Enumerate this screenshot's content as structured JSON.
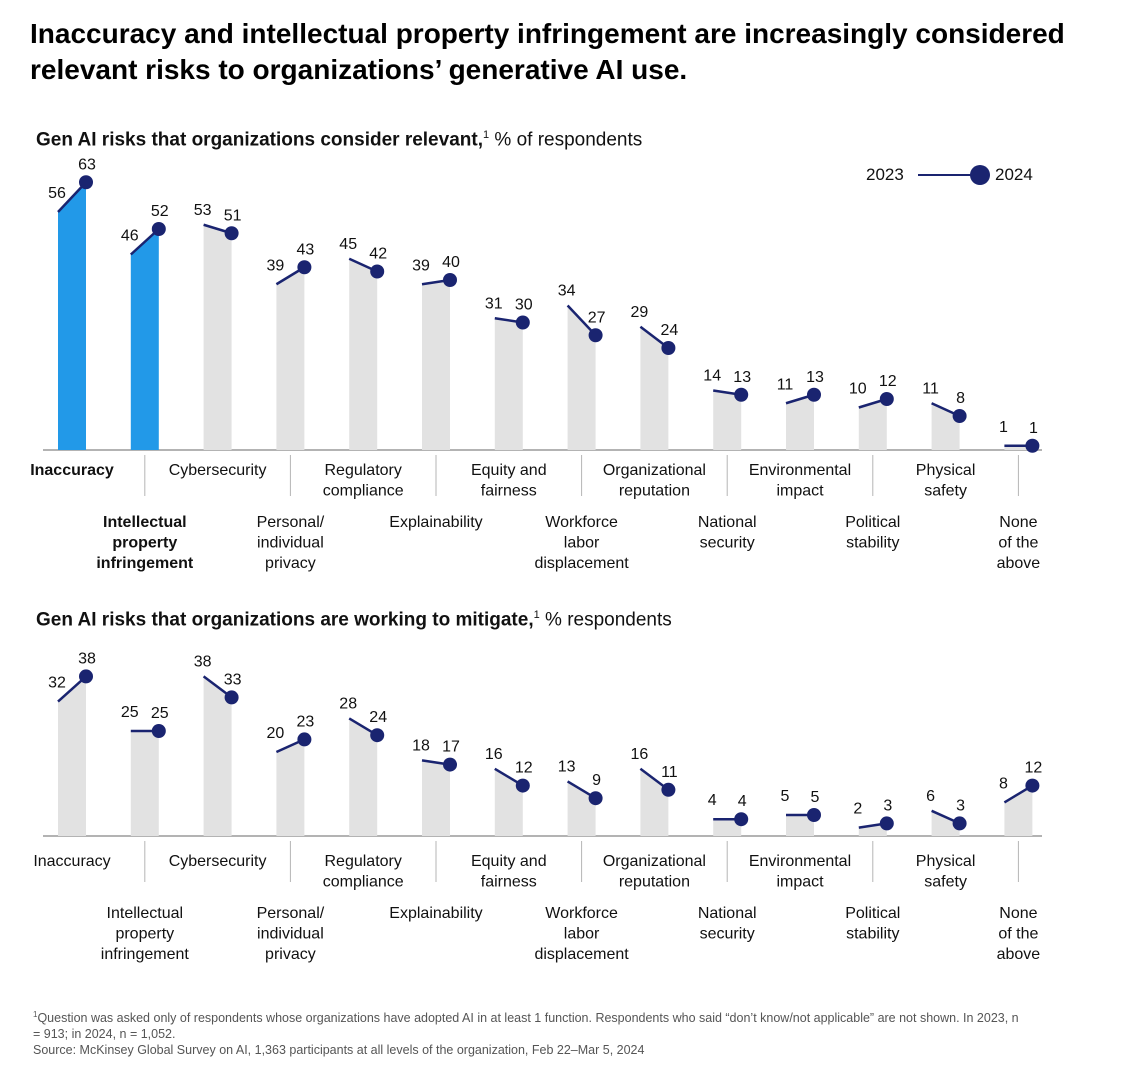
{
  "headline": "Inaccuracy and intellectual property infringement are increasingly considered relevant risks to organizations’ generative AI use.",
  "legend": {
    "label_2023": "2023",
    "label_2024": "2024"
  },
  "colors": {
    "navy": "#1a2470",
    "highlight": "#2299e8",
    "bar": "#e2e2e2"
  },
  "footnote": {
    "marker": "1",
    "text": "Question was asked only of respondents whose organizations have adopted AI in at least 1 function. Respondents who said “don’t know/not applicable” are not shown. In 2023, n = 913; in 2024, n = 1,052.",
    "source": "Source: McKinsey Global Survey on AI, 1,363 participants at all levels of the organization, Feb 22–Mar 5, 2024"
  },
  "chart_data": [
    {
      "type": "bar",
      "title": "Gen AI risks that organizations consider relevant,",
      "title_marker": "1",
      "subtitle": "% of respondents",
      "categories": [
        "Inaccuracy",
        "Intellectual property infringement",
        "Cybersecurity",
        "Personal/ individual privacy",
        "Regulatory compliance",
        "Explainability",
        "Equity and fairness",
        "Workforce labor displacement",
        "Organizational reputation",
        "National security",
        "Environmental impact",
        "Political stability",
        "Physical safety",
        "None of the above"
      ],
      "category_lines": [
        [
          "Inaccuracy"
        ],
        [
          "Intellectual",
          "property",
          "infringement"
        ],
        [
          "Cybersecurity"
        ],
        [
          "Personal/",
          "individual",
          "privacy"
        ],
        [
          "Regulatory",
          "compliance"
        ],
        [
          "Explainability"
        ],
        [
          "Equity and",
          "fairness"
        ],
        [
          "Workforce",
          "labor",
          "displacement"
        ],
        [
          "Organizational",
          "reputation"
        ],
        [
          "National",
          "security"
        ],
        [
          "Environmental",
          "impact"
        ],
        [
          "Political",
          "stability"
        ],
        [
          "Physical",
          "safety"
        ],
        [
          "None",
          "of the",
          "above"
        ]
      ],
      "highlight": [
        true,
        true,
        false,
        false,
        false,
        false,
        false,
        false,
        false,
        false,
        false,
        false,
        false,
        false
      ],
      "series": [
        {
          "name": "2023",
          "values": [
            56,
            46,
            53,
            39,
            45,
            39,
            31,
            34,
            29,
            14,
            11,
            10,
            11,
            1
          ]
        },
        {
          "name": "2024",
          "values": [
            63,
            52,
            51,
            43,
            42,
            40,
            30,
            27,
            24,
            13,
            13,
            12,
            8,
            1
          ]
        }
      ],
      "legend_position": "top-right"
    },
    {
      "type": "bar",
      "title": "Gen AI risks that organizations are working to mitigate,",
      "title_marker": "1",
      "subtitle": "% respondents",
      "categories": [
        "Inaccuracy",
        "Intellectual property infringement",
        "Cybersecurity",
        "Personal/ individual privacy",
        "Regulatory compliance",
        "Explainability",
        "Equity and fairness",
        "Workforce labor displacement",
        "Organizational reputation",
        "National security",
        "Environmental impact",
        "Political stability",
        "Physical safety",
        "None of the above"
      ],
      "category_lines": [
        [
          "Inaccuracy"
        ],
        [
          "Intellectual",
          "property",
          "infringement"
        ],
        [
          "Cybersecurity"
        ],
        [
          "Personal/",
          "individual",
          "privacy"
        ],
        [
          "Regulatory",
          "compliance"
        ],
        [
          "Explainability"
        ],
        [
          "Equity and",
          "fairness"
        ],
        [
          "Workforce",
          "labor",
          "displacement"
        ],
        [
          "Organizational",
          "reputation"
        ],
        [
          "National",
          "security"
        ],
        [
          "Environmental",
          "impact"
        ],
        [
          "Political",
          "stability"
        ],
        [
          "Physical",
          "safety"
        ],
        [
          "None",
          "of the",
          "above"
        ]
      ],
      "highlight": [
        false,
        false,
        false,
        false,
        false,
        false,
        false,
        false,
        false,
        false,
        false,
        false,
        false,
        false
      ],
      "series": [
        {
          "name": "2023",
          "values": [
            32,
            25,
            38,
            20,
            28,
            18,
            16,
            13,
            16,
            4,
            5,
            2,
            6,
            8
          ]
        },
        {
          "name": "2024",
          "values": [
            38,
            25,
            33,
            23,
            24,
            17,
            12,
            9,
            11,
            4,
            5,
            3,
            3,
            12
          ]
        }
      ]
    }
  ]
}
